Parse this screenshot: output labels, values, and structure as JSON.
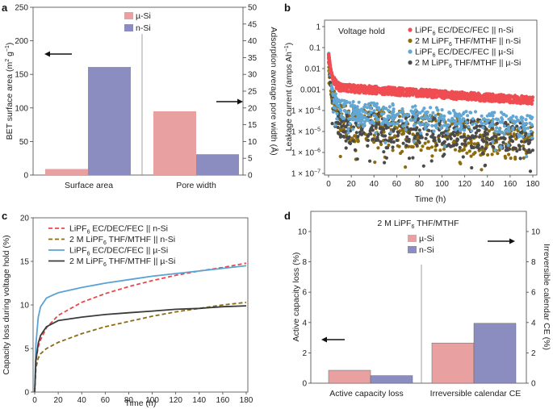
{
  "colors": {
    "pink": "#e8a0a0",
    "purple": "#8b8cbf",
    "red_dash": "#e8484a",
    "olive": "#8a6a12",
    "blue": "#5aa2d6",
    "dark": "#3a3a3a",
    "red_dot": "#ef4d52",
    "olive_dot": "#8c6c0e",
    "blue_dot": "#62a6d4",
    "dark_dot": "#4a4a4a"
  },
  "chart_data": [
    {
      "panel": "a",
      "type": "bar",
      "categories": [
        "Surface area",
        "Pore width"
      ],
      "series": [
        {
          "name": "µ-Si",
          "values": [
            9,
            19
          ]
        },
        {
          "name": "n-Si",
          "values": [
            161,
            6.2
          ]
        }
      ],
      "ylabel_left": "BET surface area (m² g⁻¹)",
      "ylabel_left_text": "BET surface area (m",
      "ylabel_left_sup": "2",
      "ylabel_left_mid": " g",
      "ylabel_left_sup2": "−1",
      "ylabel_left_end": ")",
      "ylim_left": [
        0,
        250
      ],
      "yticks_left": [
        "0",
        "50",
        "100",
        "150",
        "200",
        "250"
      ],
      "ylabel_right": "Adsorption average pore width (Å)",
      "ylim_right": [
        0,
        50
      ],
      "yticks_right": [
        "0",
        "5",
        "10",
        "15",
        "20",
        "25",
        "30",
        "35",
        "40",
        "45",
        "50"
      ],
      "legend": [
        "µ-Si",
        "n-Si"
      ]
    },
    {
      "panel": "b",
      "type": "scatter",
      "title": "Voltage hold",
      "xlabel": "Time (h)",
      "ylabel": "Leakage current (amps Ah⁻¹)",
      "ylabel_text": "Leakage current (amps Ah",
      "ylabel_sup": "−1",
      "ylabel_end": ")",
      "xlim": [
        0,
        180
      ],
      "xticks": [
        "0",
        "20",
        "40",
        "60",
        "80",
        "100",
        "120",
        "140",
        "160",
        "180"
      ],
      "yscale": "log",
      "ylim": [
        1e-07,
        1
      ],
      "ytick_labels": [
        {
          "base": "1",
          "exp": ""
        },
        {
          "base": "0.1",
          "exp": ""
        },
        {
          "base": "0.01",
          "exp": ""
        },
        {
          "base": "0.001",
          "exp": ""
        },
        {
          "base": "1 × 10",
          "exp": "−4"
        },
        {
          "base": "1 × 10",
          "exp": "−5"
        },
        {
          "base": "1 × 10",
          "exp": "−6"
        },
        {
          "base": "1 × 10",
          "exp": "−7"
        }
      ],
      "series": [
        {
          "name": "LiPF6 EC/DEC/FEC || n-Si",
          "start": 0.05,
          "level_mid": 0.0012,
          "level_end": 0.0003
        },
        {
          "name": "2 M LiPF6 THF/MTHF || n-Si",
          "start": 0.02,
          "level_mid": 3e-05,
          "level_end": 3e-06
        },
        {
          "name": "LiPF6 EC/DEC/FEC || µ-Si",
          "start": 0.08,
          "level_mid": 0.0001,
          "level_end": 2e-05
        },
        {
          "name": "2 M LiPF6 THF/MTHF || µ-Si",
          "start": 0.05,
          "level_mid": 2e-05,
          "level_end": 5e-06
        }
      ],
      "legend": [
        {
          "pre": "LiPF",
          "sub": "6",
          "post": " EC/DEC/FEC || n-Si"
        },
        {
          "pre": "2 M LiPF",
          "sub": "6",
          "post": " THF/MTHF || n-Si"
        },
        {
          "pre": "LiPF",
          "sub": "6",
          "post": " EC/DEC/FEC || µ-Si"
        },
        {
          "pre": "2 M LiPF",
          "sub": "6",
          "post": " THF/MTHF || µ-Si"
        }
      ]
    },
    {
      "panel": "c",
      "type": "line",
      "xlabel": "Time (h)",
      "ylabel": "Capacity loss during voltage hold (%)",
      "xlim": [
        0,
        180
      ],
      "xticks": [
        "0",
        "20",
        "40",
        "60",
        "80",
        "100",
        "120",
        "140",
        "160",
        "180"
      ],
      "ylim": [
        0,
        20
      ],
      "yticks": [
        "0",
        "5",
        "10",
        "15",
        "20"
      ],
      "series": [
        {
          "name": "LiPF6 EC/DEC/FEC || n-Si",
          "style": "dashed",
          "x": [
            0,
            1,
            3,
            5,
            10,
            20,
            40,
            60,
            80,
            100,
            120,
            140,
            160,
            180
          ],
          "y": [
            0,
            3.6,
            5.2,
            6.0,
            7.4,
            8.8,
            10.3,
            11.3,
            12.1,
            12.8,
            13.4,
            13.9,
            14.3,
            14.8
          ]
        },
        {
          "name": "2 M LiPF6 THF/MTHF || n-Si",
          "style": "dashed",
          "x": [
            0,
            1,
            3,
            5,
            10,
            20,
            40,
            60,
            80,
            100,
            120,
            140,
            160,
            180
          ],
          "y": [
            0,
            2.8,
            3.9,
            4.4,
            5.0,
            5.7,
            6.7,
            7.5,
            8.1,
            8.7,
            9.2,
            9.6,
            10.0,
            10.3
          ]
        },
        {
          "name": "LiPF6 EC/DEC/FEC || µ-Si",
          "style": "solid",
          "x": [
            0,
            1,
            3,
            5,
            10,
            15,
            20,
            40,
            60,
            80,
            100,
            120,
            140,
            160,
            180
          ],
          "y": [
            0,
            5.5,
            8.6,
            9.8,
            10.8,
            11.1,
            11.4,
            12.0,
            12.5,
            12.9,
            13.3,
            13.6,
            13.9,
            14.2,
            14.5
          ]
        },
        {
          "name": "2 M LiPF6 THF/MTHF || µ-Si",
          "style": "solid",
          "x": [
            0,
            1,
            3,
            5,
            10,
            20,
            40,
            60,
            80,
            100,
            120,
            140,
            160,
            180
          ],
          "y": [
            0,
            3.6,
            5.6,
            6.5,
            7.5,
            8.2,
            8.6,
            8.9,
            9.1,
            9.3,
            9.5,
            9.6,
            9.8,
            9.9
          ]
        }
      ],
      "legend": [
        {
          "pre": "LiPF",
          "sub": "6",
          "post": " EC/DEC/FEC || n-Si"
        },
        {
          "pre": "2 M LiPF",
          "sub": "6",
          "post": " THF/MTHF || n-Si"
        },
        {
          "pre": "LiPF",
          "sub": "6",
          "post": " EC/DEC/FEC || µ-Si"
        },
        {
          "pre": "2 M LiPF",
          "sub": "6",
          "post": " THF/MTHF || µ-Si"
        }
      ]
    },
    {
      "panel": "d",
      "type": "bar",
      "title": "2 M LiPF6 THF/MTHF",
      "title_parts": {
        "pre": "2 M LiPF",
        "sub": "6",
        "post": " THF/MTHF"
      },
      "categories": [
        "Active capacity loss",
        "Irreversible calendar CE"
      ],
      "series": [
        {
          "name": "µ-Si",
          "values": [
            0.85,
            2.65
          ]
        },
        {
          "name": "n-Si",
          "values": [
            0.5,
            3.95
          ]
        }
      ],
      "ylabel_left": "Active capacity loss (%)",
      "ylim_left": [
        0,
        10
      ],
      "yticks_left": [
        "0",
        "2",
        "4",
        "6",
        "8",
        "10"
      ],
      "ylabel_right": "Irreversible calendar CE (%)",
      "ylim_right": [
        0,
        10
      ],
      "yticks_right": [
        "0",
        "2",
        "4",
        "6",
        "8",
        "10"
      ],
      "legend": [
        "µ-Si",
        "n-Si"
      ]
    }
  ],
  "panel_labels": [
    "a",
    "b",
    "c",
    "d"
  ]
}
